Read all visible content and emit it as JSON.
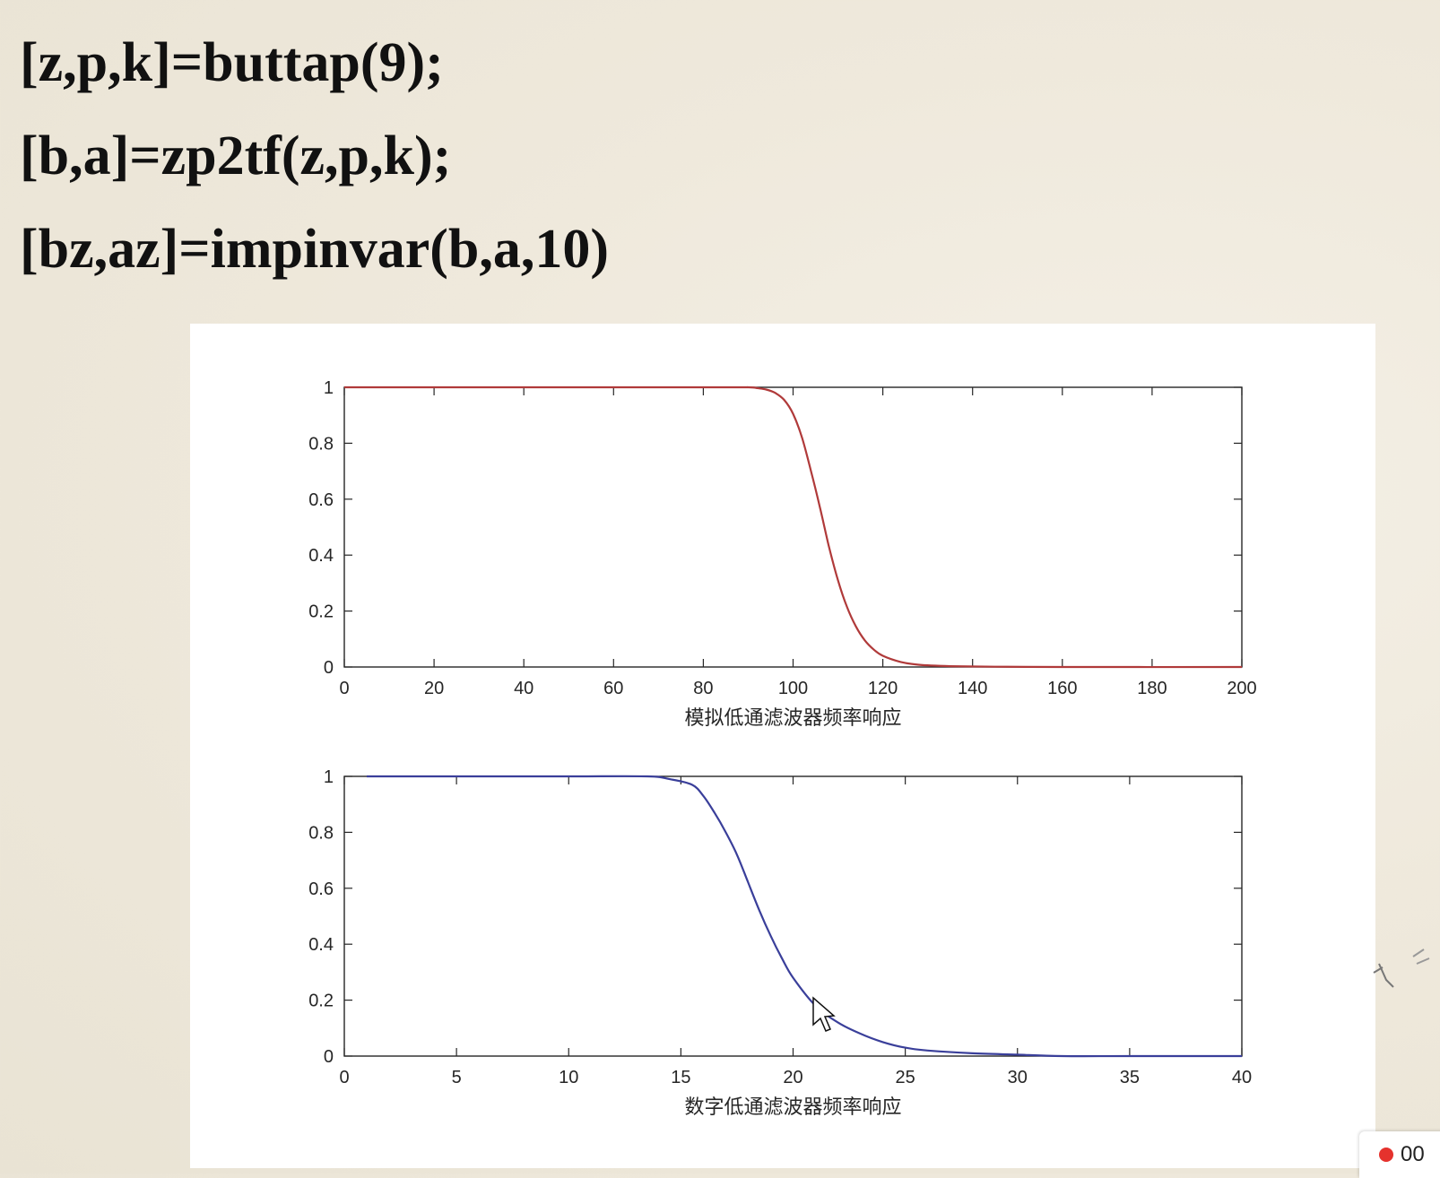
{
  "code": {
    "lines": [
      "[z,p,k]=buttap(9);",
      "[b,a]=zp2tf(z,p,k);",
      "[bz,az]=impinvar(b,a,10)"
    ]
  },
  "chart_data": [
    {
      "type": "line",
      "xlabel": "模拟低通滤波器频率响应",
      "ylabel": "",
      "title": "",
      "xlim": [
        0,
        200
      ],
      "ylim": [
        0,
        1
      ],
      "xticks": [
        0,
        20,
        40,
        60,
        80,
        100,
        120,
        140,
        160,
        180,
        200
      ],
      "yticks": [
        0,
        0.2,
        0.4,
        0.6,
        0.8,
        1
      ],
      "ytick_labels": [
        "0",
        "0.2",
        "0.4",
        "0.6",
        "0.8",
        "1"
      ],
      "grid": false,
      "series": [
        {
          "color": "#b03a3a",
          "x": [
            0,
            80,
            90,
            92,
            94,
            96,
            98,
            100,
            102,
            104,
            106,
            108,
            110,
            112,
            114,
            116,
            118,
            120,
            124,
            128,
            135,
            145,
            160,
            200
          ],
          "y": [
            1,
            1,
            1,
            0.997,
            0.992,
            0.98,
            0.955,
            0.905,
            0.82,
            0.7,
            0.57,
            0.43,
            0.31,
            0.215,
            0.145,
            0.095,
            0.062,
            0.04,
            0.018,
            0.008,
            0.003,
            0.001,
            0,
            0
          ]
        }
      ]
    },
    {
      "type": "line",
      "xlabel": "数字低通滤波器频率响应",
      "ylabel": "",
      "title": "",
      "xlim": [
        0,
        40
      ],
      "ylim": [
        0,
        1
      ],
      "xticks": [
        0,
        5,
        10,
        15,
        20,
        25,
        30,
        35,
        40
      ],
      "yticks": [
        0,
        0.2,
        0.4,
        0.6,
        0.8,
        1
      ],
      "ytick_labels": [
        "0",
        "0.2",
        "0.4",
        "0.6",
        "0.8",
        "1"
      ],
      "grid": false,
      "series": [
        {
          "color": "#3a3f9a",
          "x": [
            1,
            5,
            10,
            13.5,
            14.5,
            15.5,
            16,
            16.5,
            17,
            17.5,
            18,
            18.5,
            19,
            19.5,
            20,
            21,
            22,
            23,
            24,
            25,
            26,
            28,
            30,
            32,
            35,
            40
          ],
          "y": [
            1,
            1,
            1,
            1,
            0.99,
            0.97,
            0.93,
            0.87,
            0.8,
            0.72,
            0.62,
            0.52,
            0.43,
            0.35,
            0.28,
            0.18,
            0.12,
            0.08,
            0.05,
            0.03,
            0.02,
            0.01,
            0.005,
            0,
            0,
            0
          ]
        }
      ]
    }
  ],
  "recording": {
    "time": "00"
  }
}
